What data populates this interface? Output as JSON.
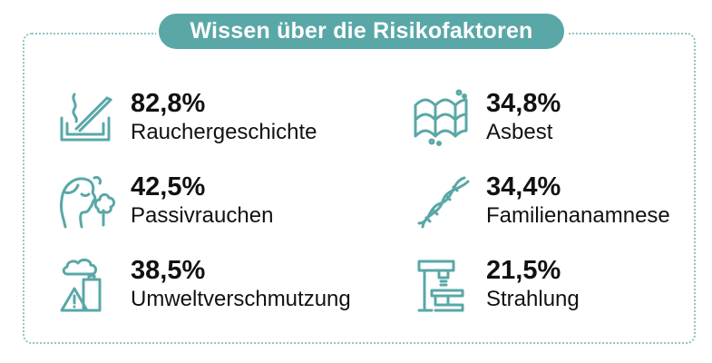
{
  "title": "Wissen über die Risikofaktoren",
  "accent_color": "#5aa7a7",
  "items": [
    {
      "percent": "82,8%",
      "label": "Rauchergeschichte",
      "icon": "cigarette-ashtray-icon"
    },
    {
      "percent": "42,5%",
      "label": "Passivrauchen",
      "icon": "person-smoke-icon"
    },
    {
      "percent": "38,5%",
      "label": "Umweltverschmutzung",
      "icon": "factory-pollution-icon"
    },
    {
      "percent": "34,8%",
      "label": "Asbest",
      "icon": "asbestos-sheet-icon"
    },
    {
      "percent": "34,4%",
      "label": "Familienanamnese",
      "icon": "dna-icon"
    },
    {
      "percent": "21,5%",
      "label": "Strahlung",
      "icon": "xray-machine-icon"
    }
  ]
}
